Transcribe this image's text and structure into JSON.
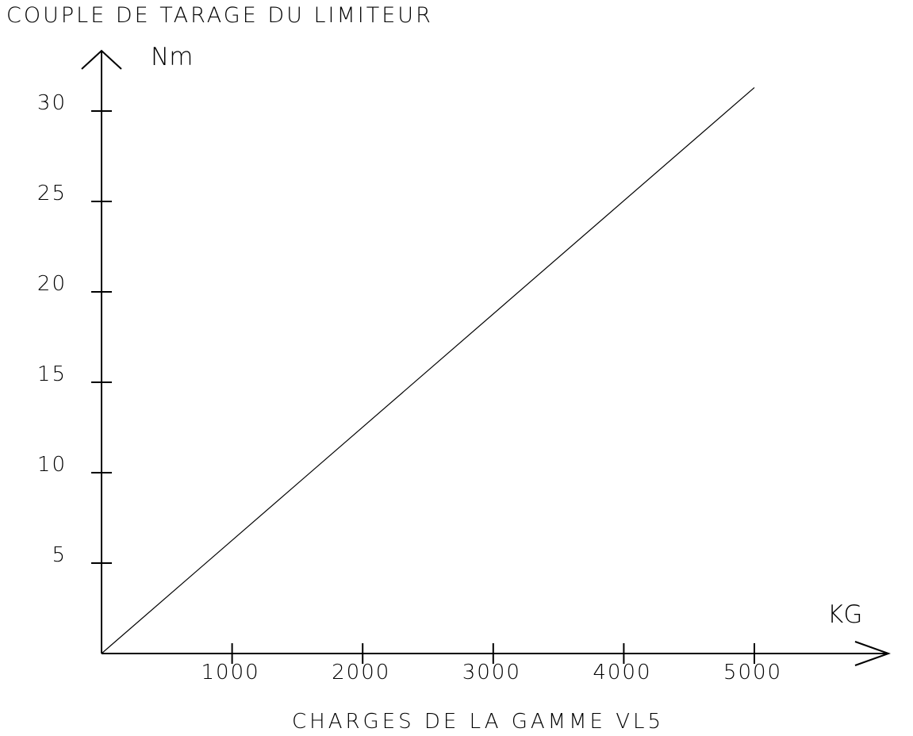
{
  "chart_data": {
    "type": "line",
    "title": "COUPLE DE TARAGE DU LIMITEUR",
    "xlabel": "CHARGES DE LA GAMME VL5",
    "x_unit": "KG",
    "y_unit": "Nm",
    "xlim": [
      0,
      6000
    ],
    "ylim": [
      0,
      32
    ],
    "x_ticks": [
      "1000",
      "2000",
      "3000",
      "4000",
      "5000"
    ],
    "y_ticks": [
      "5",
      "10",
      "15",
      "20",
      "25",
      "30"
    ],
    "grid": false,
    "series": [
      {
        "x": [
          0,
          5000
        ],
        "y": [
          0,
          31.3
        ]
      }
    ]
  }
}
